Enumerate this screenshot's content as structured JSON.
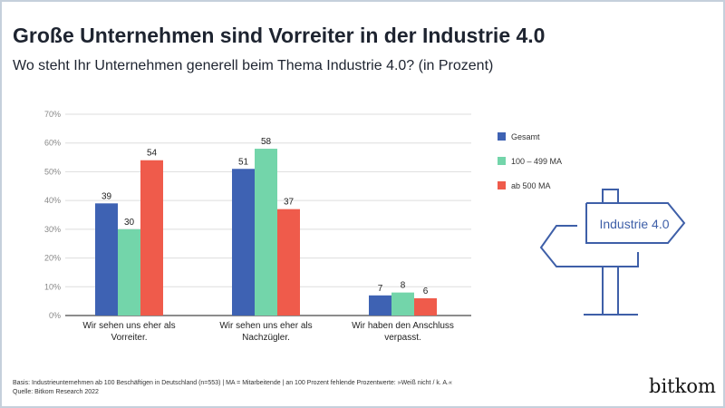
{
  "title": "Große Unternehmen sind Vorreiter in der Industrie 4.0",
  "subtitle": "Wo steht Ihr Unternehmen generell beim Thema Industrie 4.0? (in Prozent)",
  "chart_data": {
    "type": "bar",
    "categories": [
      [
        "Wir sehen uns eher als",
        "Vorreiter."
      ],
      [
        "Wir sehen uns eher als",
        "Nachzügler."
      ],
      [
        "Wir haben den Anschluss",
        "verpasst."
      ]
    ],
    "series": [
      {
        "name": "Gesamt",
        "values": [
          39,
          51,
          7
        ],
        "color": "#3e62b3"
      },
      {
        "name": "100 – 499 MA",
        "values": [
          30,
          58,
          8
        ],
        "color": "#73d5aa"
      },
      {
        "name": "ab 500 MA",
        "values": [
          54,
          37,
          6
        ],
        "color": "#ef5b4b"
      }
    ],
    "ylim": [
      0,
      70
    ],
    "yticks": [
      "0%",
      "10%",
      "20%",
      "30%",
      "40%",
      "50%",
      "60%",
      "70%"
    ],
    "grid": true,
    "legend": "right"
  },
  "illustration_label": "Industrie 4.0",
  "footer": {
    "basis": "Basis: Industrieunternehmen ab 100 Beschäftigen in Deutschland (n=553) | MA = Mitarbeitende | an 100 Prozent fehlende Prozentwerte: »Weiß nicht / k. A.«",
    "source": "Quelle: Bitkom Research 2022"
  },
  "logo": "bitkom"
}
